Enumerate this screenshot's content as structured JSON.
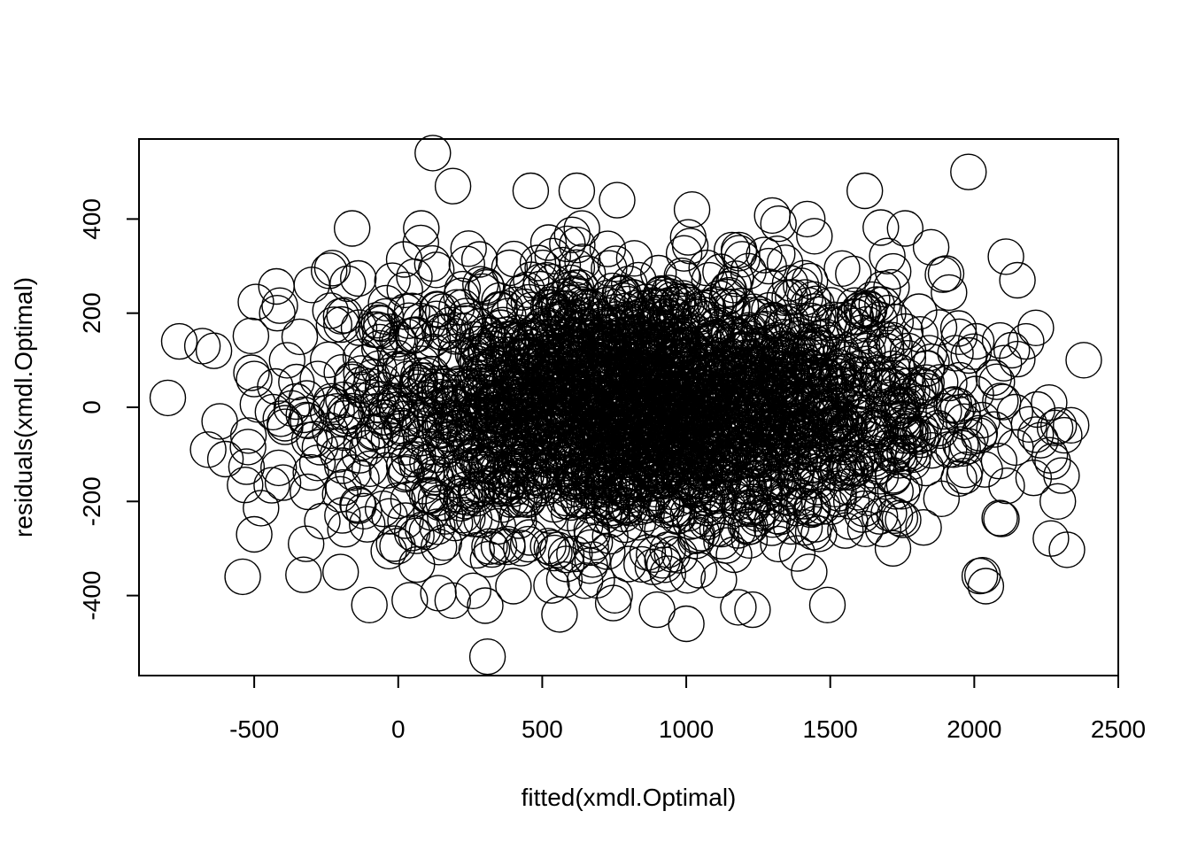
{
  "chart_data": {
    "type": "scatter",
    "title": "",
    "xlabel": "fitted(xmdl.Optimal)",
    "ylabel": "residuals(xmdl.Optimal)",
    "xlim": [
      -900,
      2500
    ],
    "ylim": [
      -570,
      570
    ],
    "x_ticks": [
      -500,
      0,
      500,
      1000,
      1500,
      2000,
      2500
    ],
    "y_ticks": [
      -400,
      -200,
      0,
      200,
      400
    ],
    "x_tick_labels": [
      "-500",
      "0",
      "500",
      "1000",
      "1500",
      "2000",
      "2500"
    ],
    "y_tick_labels": [
      "-400",
      "-200",
      "0",
      "200",
      "400"
    ],
    "marker": "open-circle",
    "marker_color": "#000000",
    "grid": false,
    "legend": "none",
    "n_points_approx": 5000,
    "points": [
      {
        "x": -800,
        "y": 20
      },
      {
        "x": -760,
        "y": 140
      },
      {
        "x": -680,
        "y": 130
      },
      {
        "x": -640,
        "y": 120
      },
      {
        "x": -660,
        "y": -90
      },
      {
        "x": -620,
        "y": -30
      },
      {
        "x": -600,
        "y": -110
      },
      {
        "x": -540,
        "y": -360
      },
      {
        "x": -500,
        "y": -270
      },
      {
        "x": -520,
        "y": -60
      },
      {
        "x": -500,
        "y": 60
      },
      {
        "x": -420,
        "y": 200
      },
      {
        "x": -400,
        "y": -160
      },
      {
        "x": -320,
        "y": -290
      },
      {
        "x": -300,
        "y": 260
      },
      {
        "x": -240,
        "y": 290
      },
      {
        "x": -200,
        "y": -350
      },
      {
        "x": -160,
        "y": 380
      },
      {
        "x": -100,
        "y": -420
      },
      {
        "x": 40,
        "y": -410
      },
      {
        "x": 80,
        "y": 380
      },
      {
        "x": 120,
        "y": 540
      },
      {
        "x": 190,
        "y": 470
      },
      {
        "x": 260,
        "y": -390
      },
      {
        "x": 310,
        "y": -530
      },
      {
        "x": 400,
        "y": -380
      },
      {
        "x": 460,
        "y": 460
      },
      {
        "x": 560,
        "y": -440
      },
      {
        "x": 620,
        "y": 460
      },
      {
        "x": 760,
        "y": 440
      },
      {
        "x": 1000,
        "y": -460
      },
      {
        "x": 1020,
        "y": 420
      },
      {
        "x": 1230,
        "y": -430
      },
      {
        "x": 1320,
        "y": 390
      },
      {
        "x": 1420,
        "y": 400
      },
      {
        "x": 1490,
        "y": -420
      },
      {
        "x": 1620,
        "y": 460
      },
      {
        "x": 1760,
        "y": 380
      },
      {
        "x": 1850,
        "y": 340
      },
      {
        "x": 1980,
        "y": 500
      },
      {
        "x": 2040,
        "y": -380
      },
      {
        "x": 2110,
        "y": 320
      },
      {
        "x": 2150,
        "y": 270
      },
      {
        "x": 2230,
        "y": -70
      },
      {
        "x": 2290,
        "y": -200
      },
      {
        "x": 2260,
        "y": 10
      },
      {
        "x": 2380,
        "y": 100
      },
      {
        "x": 2180,
        "y": 140
      }
    ]
  }
}
